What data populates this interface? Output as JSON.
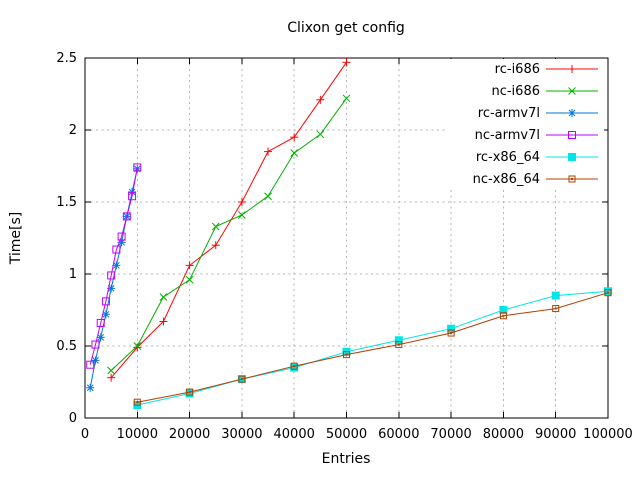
{
  "window": {
    "background": "#ffffff"
  },
  "chart_data": {
    "type": "line",
    "title": "Clixon get config",
    "xlabel": "Entries",
    "ylabel": "Time[s]",
    "xlim": [
      0,
      100000
    ],
    "ylim": [
      0,
      2.5
    ],
    "grid": true,
    "legend_position": "top-right-inside",
    "x_ticks": {
      "values": [
        0,
        10000,
        20000,
        30000,
        40000,
        50000,
        60000,
        70000,
        80000,
        90000,
        100000
      ],
      "labels": [
        "0",
        "10000",
        "20000",
        "30000",
        "40000",
        "50000",
        "60000",
        "70000",
        "80000",
        "90000",
        "100000"
      ]
    },
    "y_ticks": {
      "values": [
        0,
        0.5,
        1,
        1.5,
        2,
        2.5
      ],
      "labels": [
        "0",
        "0.5",
        "1",
        "1.5",
        "2",
        "2.5"
      ]
    },
    "series": [
      {
        "name": "rc-i686",
        "color": "#ff0000",
        "marker": "plus",
        "x": [
          5000,
          10000,
          15000,
          20000,
          25000,
          30000,
          35000,
          40000,
          45000,
          50000
        ],
        "y": [
          0.28,
          0.49,
          0.67,
          1.06,
          1.2,
          1.5,
          1.85,
          1.95,
          2.21,
          2.47
        ]
      },
      {
        "name": "nc-i686",
        "color": "#00b000",
        "marker": "cross",
        "x": [
          5000,
          10000,
          15000,
          20000,
          25000,
          30000,
          35000,
          40000,
          45000,
          50000
        ],
        "y": [
          0.33,
          0.5,
          0.84,
          0.96,
          1.33,
          1.41,
          1.54,
          1.84,
          1.97,
          2.22
        ]
      },
      {
        "name": "rc-armv7l",
        "color": "#0077dd",
        "marker": "asterisk",
        "x": [
          1000,
          2000,
          3000,
          4000,
          5000,
          6000,
          7000,
          8000,
          9000,
          10000
        ],
        "y": [
          0.21,
          0.4,
          0.56,
          0.72,
          0.9,
          1.06,
          1.22,
          1.4,
          1.57,
          1.73
        ]
      },
      {
        "name": "nc-armv7l",
        "color": "#c000ff",
        "marker": "square-open",
        "x": [
          1000,
          2000,
          3000,
          4000,
          5000,
          6000,
          7000,
          8000,
          9000,
          10000
        ],
        "y": [
          0.37,
          0.51,
          0.66,
          0.81,
          0.99,
          1.17,
          1.26,
          1.4,
          1.54,
          1.74
        ]
      },
      {
        "name": "rc-x86_64",
        "color": "#00e5e5",
        "marker": "square-filled",
        "x": [
          10000,
          20000,
          30000,
          40000,
          50000,
          60000,
          70000,
          80000,
          90000,
          100000
        ],
        "y": [
          0.09,
          0.17,
          0.27,
          0.35,
          0.46,
          0.54,
          0.62,
          0.75,
          0.85,
          0.88
        ]
      },
      {
        "name": "nc-x86_64",
        "color": "#b14000",
        "marker": "square-open-dot",
        "x": [
          10000,
          20000,
          30000,
          40000,
          50000,
          60000,
          70000,
          80000,
          90000,
          100000
        ],
        "y": [
          0.11,
          0.18,
          0.27,
          0.36,
          0.44,
          0.51,
          0.59,
          0.71,
          0.76,
          0.87
        ]
      }
    ]
  }
}
